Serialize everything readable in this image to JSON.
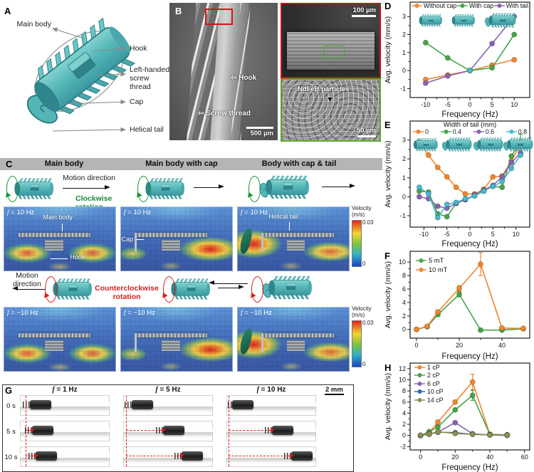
{
  "panels": {
    "A": {
      "letter": "A",
      "labels": {
        "main_body": "Main body",
        "hook": "Hook",
        "thread": "Left-handed screw thread",
        "cap": "Cap",
        "tail": "Helical tail"
      }
    },
    "B": {
      "letter": "B",
      "arrow_glyph": "⇦",
      "hook": "Hook",
      "thread": "Screw thread",
      "scale_main": "500 µm",
      "scale_top": "100 µm",
      "particles": "NdFeB particles",
      "particles_arrow": "▼",
      "scale_bottom": "50 µm"
    },
    "C": {
      "letter": "C",
      "f_symbol": "f",
      "columns": [
        "Main body",
        "Main body with cap",
        "Body with cap & tail"
      ],
      "top": {
        "motion": "Motion direction",
        "rotation": "Clockwise rotation",
        "freq_rest": " = 10 Hz"
      },
      "bottom": {
        "motion": "Motion direction",
        "rotation": "Counterclockwise rotation",
        "freq_rest": " = −10 Hz"
      },
      "annotations": {
        "main_body": "Main body",
        "hook": "Hook",
        "cap": "Cap",
        "tail": "Helical tail"
      },
      "colorbar": {
        "title": "Velocity",
        "units": "(m/s)",
        "max": "0.03",
        "min": "0"
      }
    },
    "D": {
      "letter": "D"
    },
    "E": {
      "letter": "E"
    },
    "F": {
      "letter": "F"
    },
    "G": {
      "letter": "G",
      "f_symbol": "f",
      "freqs": [
        " = 1 Hz",
        " = 5 Hz",
        " = 10 Hz"
      ],
      "rows": [
        "0 s",
        "5 s",
        "10 s"
      ],
      "scale": "2 mm"
    },
    "H": {
      "letter": "H"
    }
  },
  "chart_data": [
    {
      "id": "D",
      "type": "line",
      "xlabel": "Frequency (Hz)",
      "ylabel": "Avg. velocity (mm/s)",
      "xlim": [
        -13.5,
        13.5
      ],
      "ylim": [
        -1.5,
        3.8
      ],
      "xticks": [
        -10,
        -5,
        0,
        5,
        10
      ],
      "yticks": [
        -1,
        0,
        1,
        2,
        3
      ],
      "legend_position": "top-row",
      "grid": false,
      "x": [
        -10,
        -5,
        0,
        5,
        10
      ],
      "series": [
        {
          "name": "Without cap",
          "color": "#F0862C",
          "y": [
            -0.5,
            -0.25,
            0,
            0.3,
            0.6
          ]
        },
        {
          "name": "With cap",
          "color": "#47A447",
          "y": [
            1.55,
            0.7,
            0,
            0.15,
            2.0
          ]
        },
        {
          "name": "With tail",
          "color": "#8963AE",
          "y": [
            -0.7,
            -0.3,
            0,
            1.5,
            3.0
          ]
        }
      ],
      "origin_marker": {
        "x": 0,
        "y": 0,
        "color": "#4AB7CE"
      }
    },
    {
      "id": "E",
      "type": "line",
      "legend_title": "Width of tail (mm)",
      "xlabel": "Frequency (Hz)",
      "ylabel": "Avg. velocity (mm/s)",
      "xlim": [
        -13,
        13
      ],
      "ylim": [
        -1.6,
        4.0
      ],
      "xticks": [
        -10,
        -5,
        0,
        5,
        10
      ],
      "yticks": [
        -1,
        0,
        1,
        2,
        3
      ],
      "legend_position": "top-title-row",
      "grid": false,
      "x": [
        -11,
        -9,
        -7,
        -5,
        -3,
        -1,
        1,
        3,
        5,
        7,
        9,
        11
      ],
      "series": [
        {
          "name": "0",
          "color": "#F0862C",
          "y": [
            2.9,
            2.2,
            1.55,
            1.05,
            0.5,
            0.15,
            0.15,
            0.4,
            1.05,
            1.1,
            1.9,
            2.75
          ]
        },
        {
          "name": "0.4",
          "color": "#47A447",
          "y": [
            0.3,
            0.25,
            -0.9,
            -1.05,
            -0.35,
            -0.15,
            0.05,
            0.3,
            0.55,
            0.5,
            2.15,
            2.85
          ],
          "err": [
            null,
            null,
            null,
            null,
            null,
            null,
            null,
            null,
            null,
            null,
            null,
            0.45
          ]
        },
        {
          "name": "0.6",
          "color": "#8963AE",
          "y": [
            0.0,
            -0.1,
            -0.5,
            -0.6,
            -0.35,
            -0.15,
            0.1,
            0.35,
            0.6,
            1.05,
            1.8,
            2.3
          ]
        },
        {
          "name": "0.8",
          "color": "#4AB7CE",
          "y": [
            0.5,
            0.15,
            -1.1,
            -0.4,
            -0.3,
            -0.1,
            0.05,
            0.3,
            0.55,
            0.8,
            1.5,
            2.2
          ]
        }
      ]
    },
    {
      "id": "F",
      "type": "line",
      "xlabel": "Frequency (Hz)",
      "ylabel": "Avg. velocity (mm/s)",
      "xlim": [
        -3,
        53
      ],
      "ylim": [
        -1.3,
        11.6
      ],
      "xticks": [
        0,
        20,
        40
      ],
      "yticks": [
        0,
        2,
        4,
        6,
        8,
        10
      ],
      "legend_position": "top-left-column",
      "grid": false,
      "x": [
        0,
        5,
        10,
        20,
        30,
        40,
        50
      ],
      "series": [
        {
          "name": "5 mT",
          "color": "#47A447",
          "y": [
            0,
            0.4,
            2.2,
            5.2,
            -0.1,
            -0.1,
            0.1
          ],
          "err": [
            null,
            null,
            null,
            0.35,
            null,
            null,
            null
          ]
        },
        {
          "name": "10 mT",
          "color": "#F0862C",
          "y": [
            0,
            0.45,
            2.6,
            6.1,
            9.7,
            0.2,
            0.15
          ],
          "err": [
            null,
            null,
            null,
            0.4,
            1.7,
            null,
            null
          ]
        }
      ]
    },
    {
      "id": "H",
      "type": "line",
      "xlabel": "Frequency (Hz)",
      "ylabel": "Avg. velocity (mm/s)",
      "xlim": [
        -6,
        63
      ],
      "ylim": [
        -2.6,
        13
      ],
      "xticks": [
        0,
        20,
        40,
        60
      ],
      "yticks": [
        -2,
        0,
        2,
        4,
        6,
        8,
        10,
        12
      ],
      "legend_position": "top-left-column",
      "grid": false,
      "x": [
        0,
        5,
        10,
        20,
        30,
        40,
        50
      ],
      "series": [
        {
          "name": "1 cP",
          "color": "#F0862C",
          "y": [
            0,
            0.5,
            2.4,
            6.0,
            9.6,
            0.2,
            0.1
          ],
          "err": [
            null,
            null,
            null,
            null,
            1.4,
            null,
            null
          ]
        },
        {
          "name": "2 cP",
          "color": "#47A447",
          "y": [
            0,
            0.7,
            1.5,
            4.6,
            7.2,
            0.2,
            0.1
          ],
          "err": [
            null,
            null,
            null,
            null,
            0.9,
            null,
            null
          ]
        },
        {
          "name": "6 cP",
          "color": "#8963AE",
          "y": [
            0,
            0.3,
            0.6,
            2.3,
            0.3,
            0.1,
            0.1
          ]
        },
        {
          "name": "10 cP",
          "color": "#2D6AB0",
          "y": [
            0,
            0.2,
            0.6,
            0.5,
            0.2,
            0.1,
            0.0
          ]
        },
        {
          "name": "14 cP",
          "color": "#8F9051",
          "y": [
            0.05,
            0.25,
            0.65,
            0.35,
            0.2,
            0.1,
            0.05
          ]
        }
      ]
    }
  ]
}
